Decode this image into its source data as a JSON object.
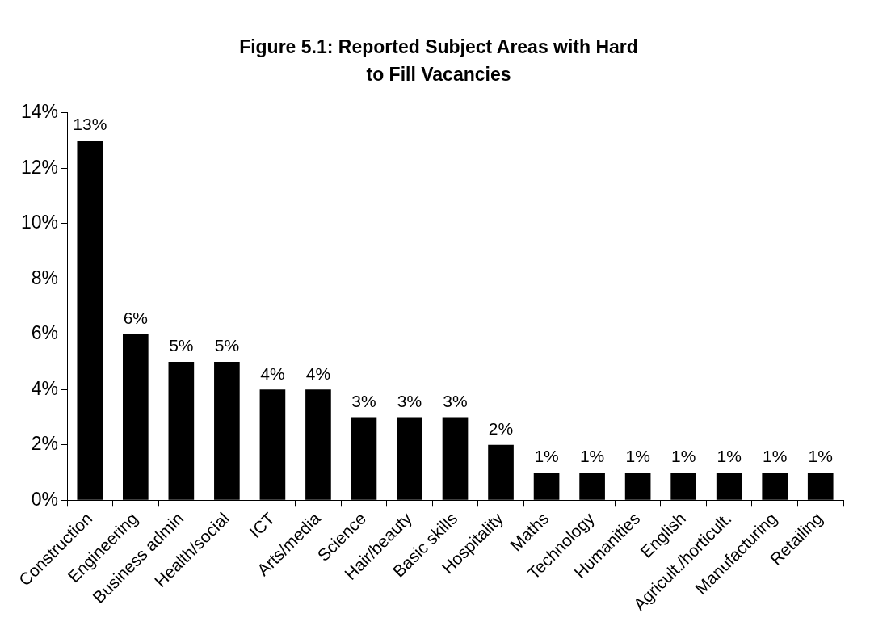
{
  "chart_data": {
    "type": "bar",
    "title": "Figure 5.1: Reported Subject Areas with Hard to Fill Vacancies",
    "categories": [
      "Construction",
      "Engineering",
      "Business admin",
      "Health/social",
      "ICT",
      "Arts/media",
      "Science",
      "Hair/beauty",
      "Basic skills",
      "Hospitality",
      "Maths",
      "Technology",
      "Humanities",
      "English",
      "Agricult./horticult.",
      "Manufacturing",
      "Retailing"
    ],
    "values": [
      13,
      6,
      5,
      5,
      4,
      4,
      3,
      3,
      3,
      2,
      1,
      1,
      1,
      1,
      1,
      1,
      1
    ],
    "value_labels": [
      "13%",
      "6%",
      "5%",
      "5%",
      "4%",
      "4%",
      "3%",
      "3%",
      "3%",
      "2%",
      "1%",
      "1%",
      "1%",
      "1%",
      "1%",
      "1%",
      "1%"
    ],
    "color": "#000000",
    "ylim": [
      0,
      14
    ],
    "yticks": [
      {
        "value": 0,
        "label": "0%"
      },
      {
        "value": 2,
        "label": "2%"
      },
      {
        "value": 4,
        "label": "4%"
      },
      {
        "value": 6,
        "label": "6%"
      },
      {
        "value": 8,
        "label": "8%"
      },
      {
        "value": 10,
        "label": "10%"
      },
      {
        "value": 12,
        "label": "12%"
      },
      {
        "value": 14,
        "label": "14%"
      }
    ]
  }
}
